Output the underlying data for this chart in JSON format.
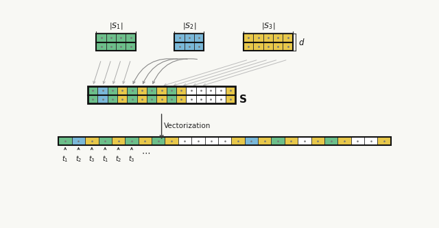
{
  "bg_color": "#f8f8f4",
  "green": "#6cbf8a",
  "blue": "#7ab8d8",
  "yellow": "#e8c84a",
  "white": "#ffffff",
  "cell_edge": "#333333",
  "s1_cols": 4,
  "s2_cols": 3,
  "s3_cols": 5,
  "s_ncols": 15,
  "s_colors_top": [
    "green",
    "blue",
    "green",
    "yellow",
    "green",
    "yellow",
    "green",
    "yellow",
    "green",
    "yellow",
    "white",
    "white",
    "white",
    "white",
    "yellow"
  ],
  "s_colors_bot": [
    "green",
    "blue",
    "green",
    "yellow",
    "green",
    "yellow",
    "green",
    "yellow",
    "green",
    "yellow",
    "white",
    "white",
    "white",
    "white",
    "yellow"
  ],
  "vec_colors": [
    "green",
    "blue",
    "yellow",
    "green",
    "yellow",
    "green",
    "yellow",
    "green",
    "yellow",
    "white",
    "white",
    "white",
    "white",
    "yellow",
    "blue",
    "yellow",
    "green",
    "yellow",
    "white",
    "yellow",
    "green",
    "yellow",
    "white",
    "white",
    "yellow"
  ]
}
